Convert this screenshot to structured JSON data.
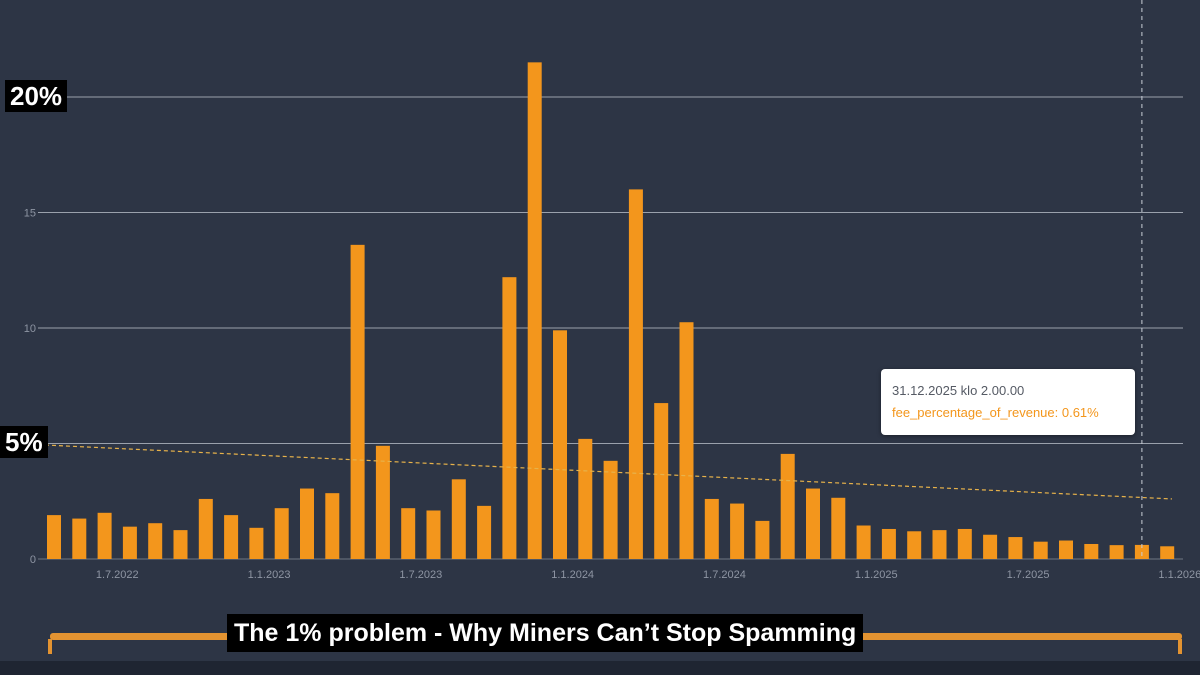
{
  "chart_data": {
    "type": "bar",
    "title": "The 1% problem - Why Miners Can’t Stop Spamming",
    "ylabel": "",
    "xlabel": "",
    "ylim": [
      0,
      22
    ],
    "y_ticks": [
      "0",
      "5",
      "10",
      "15",
      "20"
    ],
    "y_tick_values": [
      0,
      5,
      10,
      15,
      20
    ],
    "highlight_labels": [
      {
        "text": "20%",
        "value": 20
      },
      {
        "text": "5%",
        "value": 5
      }
    ],
    "x_tick_labels": [
      "1.7.2022",
      "1.1.2023",
      "1.7.2023",
      "1.1.2024",
      "1.7.2024",
      "1.1.2025",
      "1.7.2025",
      "1.1.2026"
    ],
    "x_tick_index": [
      2,
      8,
      14,
      20,
      26,
      32,
      38,
      44
    ],
    "series": [
      {
        "name": "fee_percentage_of_revenue",
        "color": "#f3961c",
        "values": [
          1.9,
          1.75,
          2.0,
          1.4,
          1.55,
          1.25,
          2.6,
          1.9,
          1.35,
          2.2,
          3.05,
          2.85,
          13.6,
          4.9,
          2.2,
          2.1,
          3.45,
          2.3,
          12.2,
          21.5,
          9.9,
          5.2,
          4.25,
          16.0,
          6.75,
          10.25,
          2.6,
          2.4,
          1.65,
          4.55,
          3.05,
          2.65,
          1.45,
          1.3,
          1.2,
          1.25,
          1.3,
          1.05,
          0.95,
          0.75,
          0.8,
          0.65,
          0.6,
          0.61,
          0.55
        ]
      }
    ],
    "trendline": {
      "start": 4.95,
      "end": 2.6,
      "color": "#e7b24a"
    },
    "tooltip": {
      "date": "31.12.2025 klo 2.00.00",
      "series_name": "fee_percentage_of_revenue",
      "value_text": "0.61%",
      "line": "fee_percentage_of_revenue: 0.61%",
      "bar_index": 43
    },
    "colors": {
      "background": "#2d3545",
      "grid": "#aeb4bf",
      "bar": "#f3961c",
      "tick_text": "#8e95a3",
      "slider": "#e39331"
    }
  }
}
